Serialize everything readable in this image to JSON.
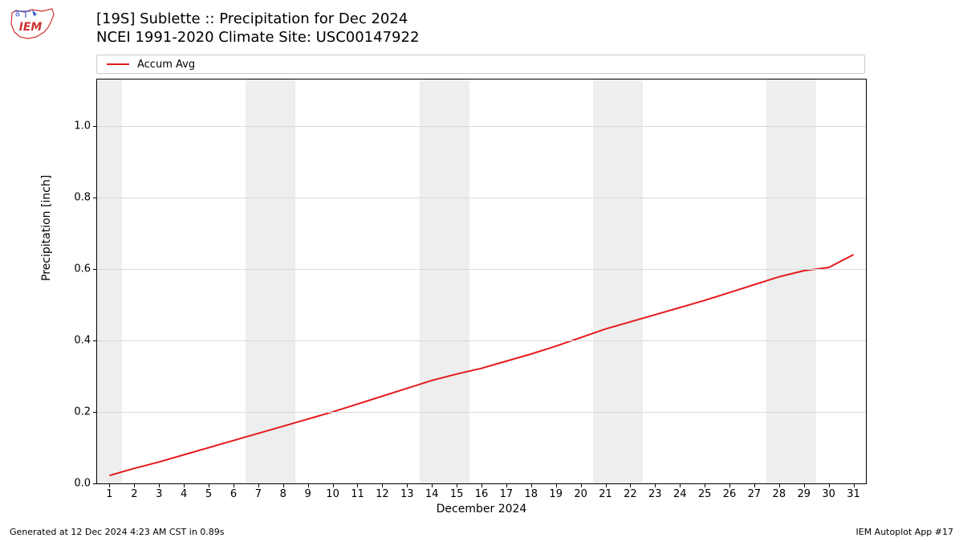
{
  "logo": {
    "text": "IEM",
    "text_color": "#cc3333",
    "outline_color": "#cc3333",
    "icon_color": "#3355cc"
  },
  "title": {
    "line1": "[19S] Sublette :: Precipitation for Dec 2024",
    "line2": "NCEI 1991-2020 Climate Site: USC00147922",
    "fontsize": 18
  },
  "legend": {
    "items": [
      {
        "label": "Accum Avg",
        "color": "#e41a1c",
        "line_width": 2
      }
    ],
    "border_color": "#cccccc",
    "fontsize": 13
  },
  "chart": {
    "type": "line",
    "plot_bg": "#ffffff",
    "grid_color": "#d9d9d9",
    "weekend_band_color": "#eeeeee",
    "border_color": "#000000",
    "x": {
      "label": "December 2024",
      "min": 0.5,
      "max": 31.5,
      "ticks": [
        1,
        2,
        3,
        4,
        5,
        6,
        7,
        8,
        9,
        10,
        11,
        12,
        13,
        14,
        15,
        16,
        17,
        18,
        19,
        20,
        21,
        22,
        23,
        24,
        25,
        26,
        27,
        28,
        29,
        30,
        31
      ],
      "weekend_bands": [
        [
          0.5,
          1.5
        ],
        [
          6.5,
          8.5
        ],
        [
          13.5,
          15.5
        ],
        [
          20.5,
          22.5
        ],
        [
          27.5,
          29.5
        ]
      ],
      "label_fontsize": 14,
      "tick_fontsize": 13
    },
    "y": {
      "label": "Precipitation [inch]",
      "min": 0.0,
      "max": 1.13,
      "ticks": [
        0.0,
        0.2,
        0.4,
        0.6,
        0.8,
        1.0
      ],
      "tick_labels": [
        "0.0",
        "0.2",
        "0.4",
        "0.6",
        "0.8",
        "1.0"
      ],
      "label_fontsize": 14,
      "tick_fontsize": 13
    },
    "series": [
      {
        "name": "Accum Avg",
        "color": "#e41a1c",
        "line_width": 2,
        "x": [
          1,
          2,
          3,
          4,
          5,
          6,
          7,
          8,
          9,
          10,
          11,
          12,
          13,
          14,
          15,
          16,
          17,
          18,
          19,
          20,
          21,
          22,
          23,
          24,
          25,
          26,
          27,
          28,
          29,
          30,
          31
        ],
        "y": [
          0.022,
          0.042,
          0.06,
          0.08,
          0.1,
          0.12,
          0.14,
          0.16,
          0.18,
          0.2,
          0.222,
          0.244,
          0.266,
          0.288,
          0.306,
          0.322,
          0.342,
          0.362,
          0.384,
          0.408,
          0.432,
          0.452,
          0.472,
          0.492,
          0.512,
          0.534,
          0.556,
          0.578,
          0.595,
          0.604,
          0.64
        ]
      }
    ]
  },
  "footer": {
    "left": "Generated at 12 Dec 2024 4:23 AM CST in 0.89s",
    "right": "IEM Autoplot App #17",
    "fontsize": 11
  }
}
